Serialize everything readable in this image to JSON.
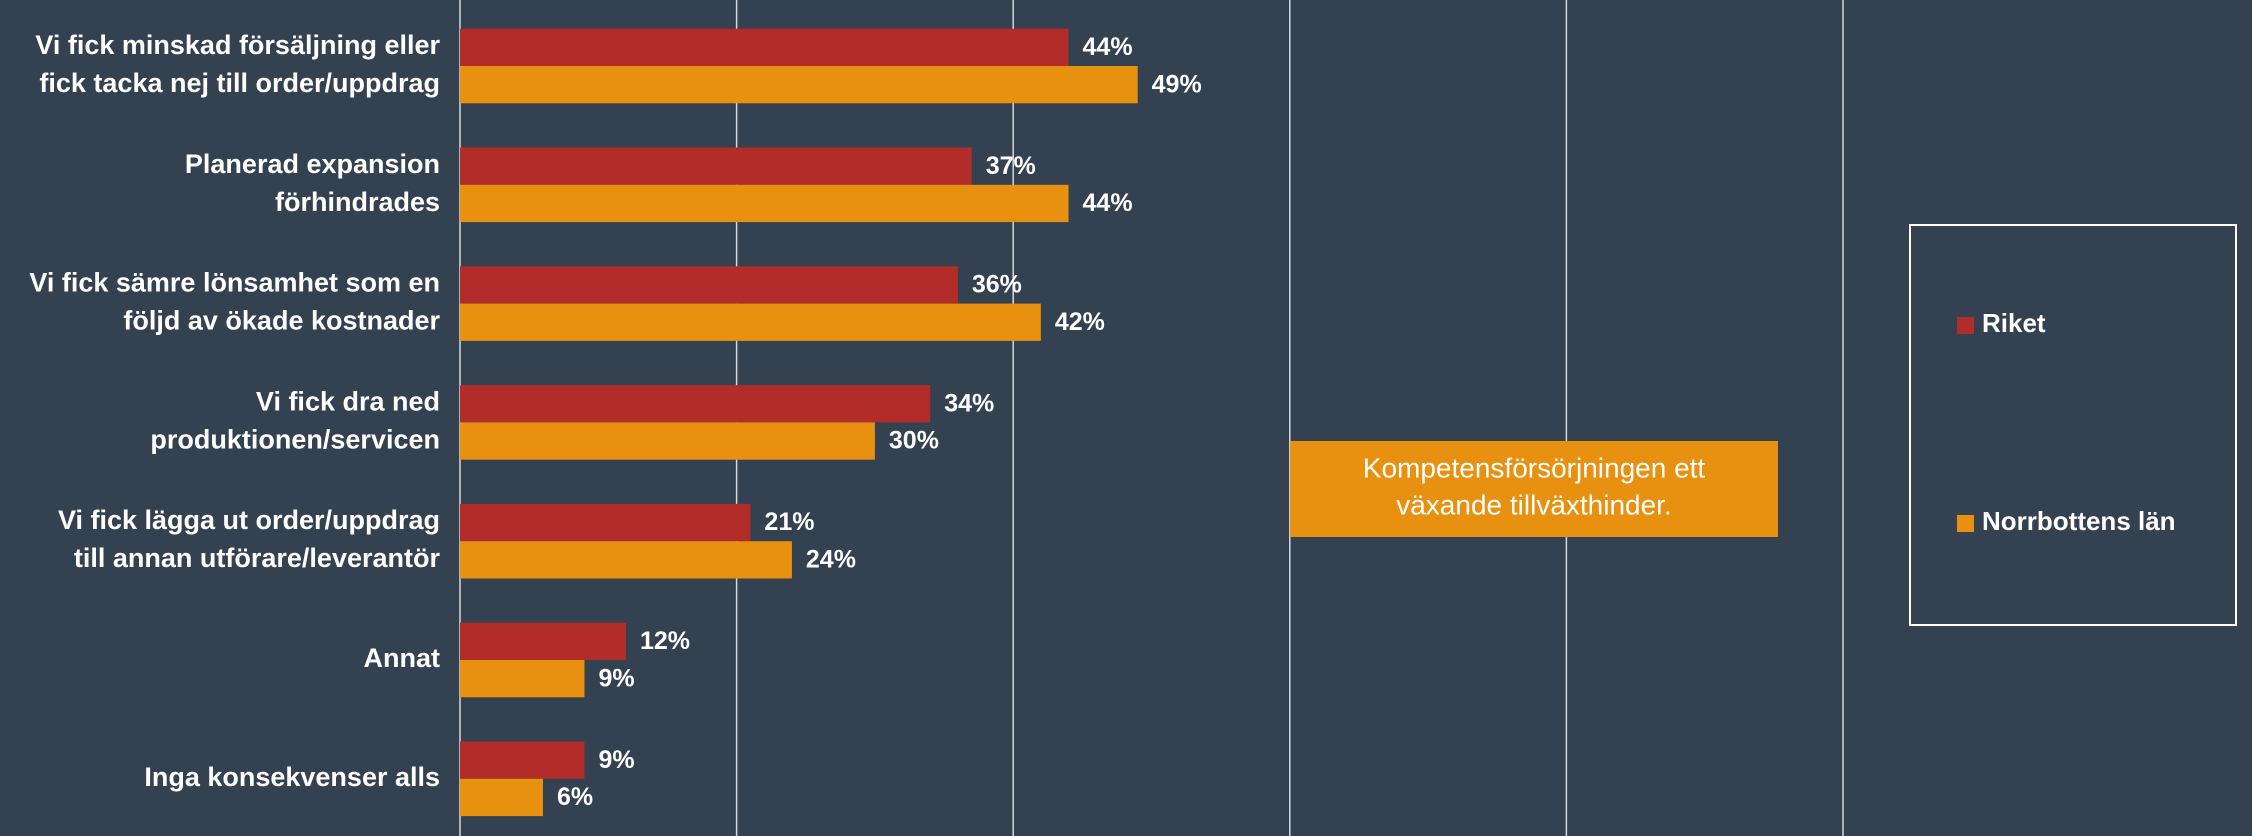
{
  "chart_data": {
    "type": "bar",
    "orientation": "horizontal",
    "categories": [
      "Vi fick minskad försäljning eller\nfick tacka nej till order/uppdrag",
      "Planerad expansion\nförhindrades",
      "Vi fick sämre lönsamhet som en\nföljd av ökade kostnader",
      "Vi fick dra ned\nproduktionen/servicen",
      "Vi fick lägga ut order/uppdrag\ntill annan utförare/leverantör",
      "Annat",
      "Inga konsekvenser alls"
    ],
    "series": [
      {
        "name": "Riket",
        "color": "#b22d29",
        "values": [
          44,
          37,
          36,
          34,
          21,
          12,
          9
        ],
        "value_labels": [
          "44%",
          "37%",
          "36%",
          "34%",
          "21%",
          "12%",
          "9%"
        ]
      },
      {
        "name": "Norrbottens län",
        "color": "#e8900f",
        "values": [
          49,
          44,
          42,
          30,
          24,
          9,
          6
        ],
        "value_labels": [
          "49%",
          "44%",
          "42%",
          "30%",
          "24%",
          "9%",
          "6%"
        ]
      }
    ],
    "xlim": [
      0,
      100
    ],
    "xticks": [
      0,
      20,
      40,
      60,
      80,
      100
    ],
    "grid": true,
    "legend": "right",
    "annotation": {
      "text": "Kompetensförsörjningen ett\nväxande tillväxthinder.",
      "color": "#e8900f"
    }
  }
}
